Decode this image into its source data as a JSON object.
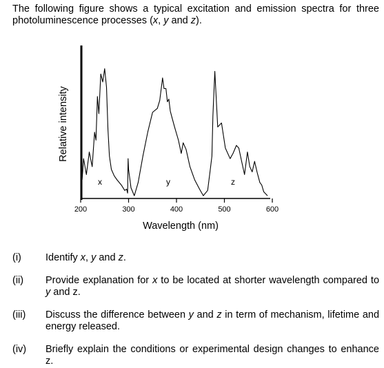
{
  "intro": {
    "part1": "The following figure shows a typical excitation and emission spectra for three photoluminescence processes (",
    "x": "x",
    "sep1": ", ",
    "y": "y",
    "sep2": " and ",
    "z": "z",
    "part2": ")."
  },
  "figure": {
    "ylabel": "Relative intensity",
    "xlabel": "Wavelength (nm)",
    "ticks": [
      "200",
      "300",
      "400",
      "500",
      "600"
    ],
    "tick_values": [
      200,
      300,
      400,
      500,
      600
    ],
    "peak_labels": [
      "x",
      "y",
      "z"
    ]
  },
  "chart_data": {
    "type": "line",
    "xlabel": "Wavelength (nm)",
    "ylabel": "Relative intensity",
    "xlim": [
      200,
      600
    ],
    "peak_labels": [
      "x",
      "y",
      "z"
    ],
    "x": [
      203,
      206,
      212,
      218,
      224,
      229,
      232,
      235,
      238,
      242,
      246,
      250,
      254,
      257,
      260,
      264,
      270,
      276,
      285,
      292,
      296,
      298,
      299,
      300,
      305,
      312,
      320,
      330,
      340,
      350,
      360,
      365,
      371,
      374,
      378,
      381,
      384,
      387,
      390,
      396,
      404,
      410,
      414,
      420,
      428,
      438,
      448,
      456,
      465,
      470,
      474,
      476,
      480,
      486,
      494,
      502,
      512,
      518,
      525,
      530,
      536,
      542,
      548,
      553,
      558,
      563,
      568,
      574,
      578,
      582,
      590
    ],
    "y": [
      0.12,
      0.28,
      0.16,
      0.33,
      0.22,
      0.48,
      0.42,
      0.75,
      0.62,
      0.92,
      0.86,
      0.96,
      0.82,
      0.5,
      0.3,
      0.2,
      0.15,
      0.12,
      0.08,
      0.04,
      0.05,
      0.02,
      0.28,
      0.2,
      0.06,
      0.0,
      0.1,
      0.3,
      0.48,
      0.63,
      0.66,
      0.72,
      0.89,
      0.81,
      0.81,
      0.71,
      0.73,
      0.64,
      0.6,
      0.52,
      0.42,
      0.32,
      0.4,
      0.35,
      0.22,
      0.12,
      0.05,
      0.0,
      0.04,
      0.18,
      0.3,
      0.6,
      0.94,
      0.52,
      0.55,
      0.36,
      0.28,
      0.32,
      0.38,
      0.36,
      0.26,
      0.16,
      0.33,
      0.22,
      0.18,
      0.26,
      0.18,
      0.1,
      0.08,
      0.03,
      0.0
    ]
  },
  "questions": [
    {
      "num": "(i)",
      "p1": "Identify ",
      "i1": "x",
      "p2": ", ",
      "i2": "y",
      "p3": " and ",
      "i3": "z",
      "p4": "."
    },
    {
      "num": "(ii)",
      "p1": "Provide explanation for ",
      "i1": "x",
      "p2": " to be located at shorter wavelength compared to ",
      "i2": "y",
      "p3": " and z.",
      "i3": "",
      "p4": ""
    },
    {
      "num": "(iii)",
      "p1": "Discuss the difference between ",
      "i1": "y",
      "p2": " and ",
      "i2": "z",
      "p3": " in term of mechanism, lifetime and energy released.",
      "i3": "",
      "p4": ""
    },
    {
      "num": "(iv)",
      "p1": "Briefly explain the conditions or experimental design changes to enhance z.",
      "i1": "",
      "p2": "",
      "i2": "",
      "p3": "",
      "i3": "",
      "p4": ""
    }
  ]
}
